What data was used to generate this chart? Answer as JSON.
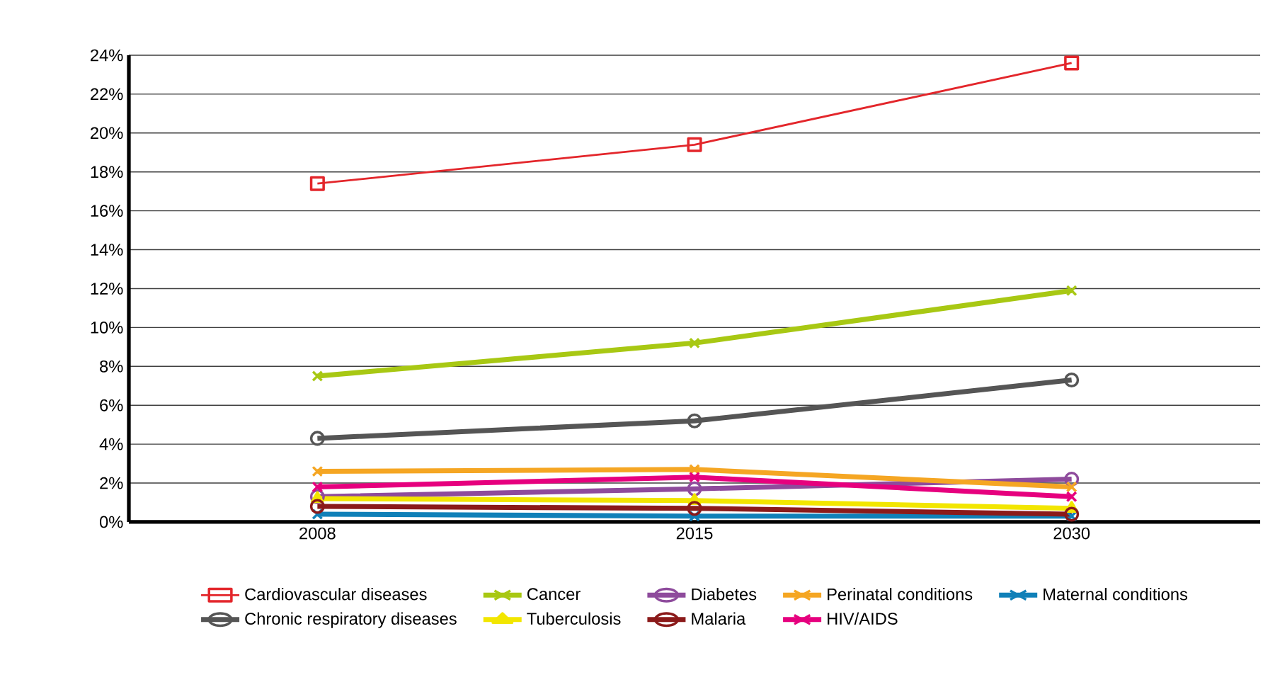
{
  "chart_data": {
    "type": "line",
    "categories": [
      "2008",
      "2015",
      "2030"
    ],
    "ylim": [
      0,
      24
    ],
    "yticks": [
      {
        "value": 0,
        "label": "0%"
      },
      {
        "value": 2,
        "label": "2%"
      },
      {
        "value": 4,
        "label": "4%"
      },
      {
        "value": 6,
        "label": "6%"
      },
      {
        "value": 8,
        "label": "8%"
      },
      {
        "value": 10,
        "label": "10%"
      },
      {
        "value": 12,
        "label": "12%"
      },
      {
        "value": 14,
        "label": "14%"
      },
      {
        "value": 16,
        "label": "16%"
      },
      {
        "value": 18,
        "label": "18%"
      },
      {
        "value": 20,
        "label": "20%"
      },
      {
        "value": 22,
        "label": "22%"
      },
      {
        "value": 24,
        "label": "24%"
      }
    ],
    "grid": "y",
    "legend": "bottom",
    "series": [
      {
        "name": "Cardiovascular diseases",
        "color": "#e3262b",
        "marker": "square",
        "values": [
          17.4,
          19.4,
          23.6
        ]
      },
      {
        "name": "Cancer",
        "color": "#a8c813",
        "marker": "cross",
        "values": [
          7.5,
          9.2,
          11.9
        ]
      },
      {
        "name": "Diabetes",
        "color": "#8e4b9c",
        "marker": "circle",
        "values": [
          1.3,
          1.7,
          2.2
        ]
      },
      {
        "name": "Perinatal conditions",
        "color": "#f5a623",
        "marker": "cross",
        "values": [
          2.6,
          2.7,
          1.8
        ]
      },
      {
        "name": "Maternal conditions",
        "color": "#1080b8",
        "marker": "cross",
        "values": [
          0.4,
          0.3,
          0.3
        ]
      },
      {
        "name": "Chronic respiratory diseases",
        "color": "#555555",
        "marker": "circle",
        "values": [
          4.3,
          5.2,
          7.3
        ]
      },
      {
        "name": "Tuberculosis",
        "color": "#f2e600",
        "marker": "triangle",
        "values": [
          1.2,
          1.1,
          0.7
        ]
      },
      {
        "name": "Malaria",
        "color": "#8b1a1a",
        "marker": "circle",
        "values": [
          0.8,
          0.7,
          0.4
        ]
      },
      {
        "name": "HIV/AIDS",
        "color": "#e6007e",
        "marker": "cross",
        "values": [
          1.8,
          2.3,
          1.3
        ]
      }
    ]
  }
}
